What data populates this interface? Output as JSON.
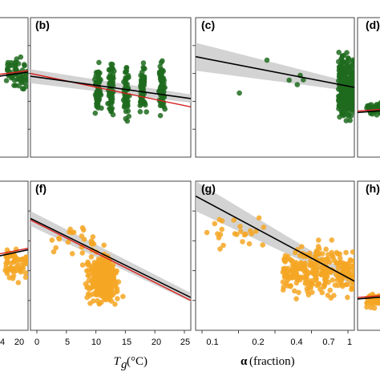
{
  "colors": {
    "green": "#1e6b1e",
    "orange": "#f5a623",
    "fit": "#000000",
    "ref": "#d62020",
    "band": "#c8c8c8"
  },
  "chart_data": [
    {
      "panel": "(b)",
      "type": "scatter",
      "row": "top",
      "col": "b",
      "xlim": [
        0,
        25
      ],
      "fit_line": {
        "x": [
          0,
          25
        ],
        "y": [
          0.58,
          0.42
        ]
      },
      "ref_line": {
        "x": [
          0,
          25
        ],
        "y": [
          0.6,
          0.36
        ]
      },
      "color": "green"
    },
    {
      "panel": "(c)",
      "type": "scatter",
      "row": "top",
      "col": "c",
      "xlim": [
        0,
        1
      ],
      "fit_line": {
        "x": [
          0,
          1
        ],
        "y": [
          0.72,
          0.5
        ]
      },
      "color": "green"
    },
    {
      "panel": "(d)",
      "type": "scatter",
      "row": "top",
      "col": "d",
      "partial": true,
      "color": "green"
    },
    {
      "panel": "(f)",
      "type": "scatter",
      "row": "bottom",
      "col": "b",
      "xlim": [
        0,
        25
      ],
      "xticks": [
        "0",
        "5",
        "10",
        "15",
        "20",
        "25"
      ],
      "xlabel": "Tg",
      "xlabel_sub": "g",
      "xlabel_unit": "(°C)",
      "fit_line": {
        "x": [
          0,
          25
        ],
        "y": [
          0.75,
          0.22
        ]
      },
      "ref_line": {
        "x": [
          0,
          25
        ],
        "y": [
          0.74,
          0.2
        ]
      },
      "color": "orange"
    },
    {
      "panel": "(g)",
      "type": "scatter",
      "row": "bottom",
      "col": "c",
      "xlim": [
        0,
        1
      ],
      "xticks": [
        "0.1",
        "0.2",
        "0.4",
        "0.7",
        "1"
      ],
      "xlabel": "α (fraction)",
      "fit_line": {
        "x": [
          0,
          1
        ],
        "y": [
          0.9,
          0.33
        ]
      },
      "color": "orange"
    },
    {
      "panel": "(h)",
      "type": "scatter",
      "row": "bottom",
      "col": "d",
      "partial": true,
      "color": "orange"
    },
    {
      "panel": "left-top",
      "type": "scatter",
      "row": "top",
      "col": "a",
      "partial": true,
      "color": "green"
    },
    {
      "panel": "left-bottom",
      "type": "scatter",
      "row": "bottom",
      "col": "a",
      "partial": true,
      "xticks_partial": [
        "4",
        "20"
      ],
      "color": "orange"
    }
  ],
  "labels": {
    "b": "(b)",
    "c": "(c)",
    "d": "(d)",
    "f": "(f)",
    "g": "(g)",
    "h": "(h)",
    "tg_main": "T",
    "tg_sub": "g",
    "tg_unit": " (°C)",
    "alpha": "α",
    "alpha_rest": " (fraction)"
  },
  "ticks": {
    "f": [
      "0",
      "5",
      "10",
      "15",
      "20",
      "25"
    ],
    "g": [
      "0.1",
      "0.2",
      "0.4",
      "0.7",
      "1"
    ],
    "left": [
      "4",
      "20"
    ]
  }
}
